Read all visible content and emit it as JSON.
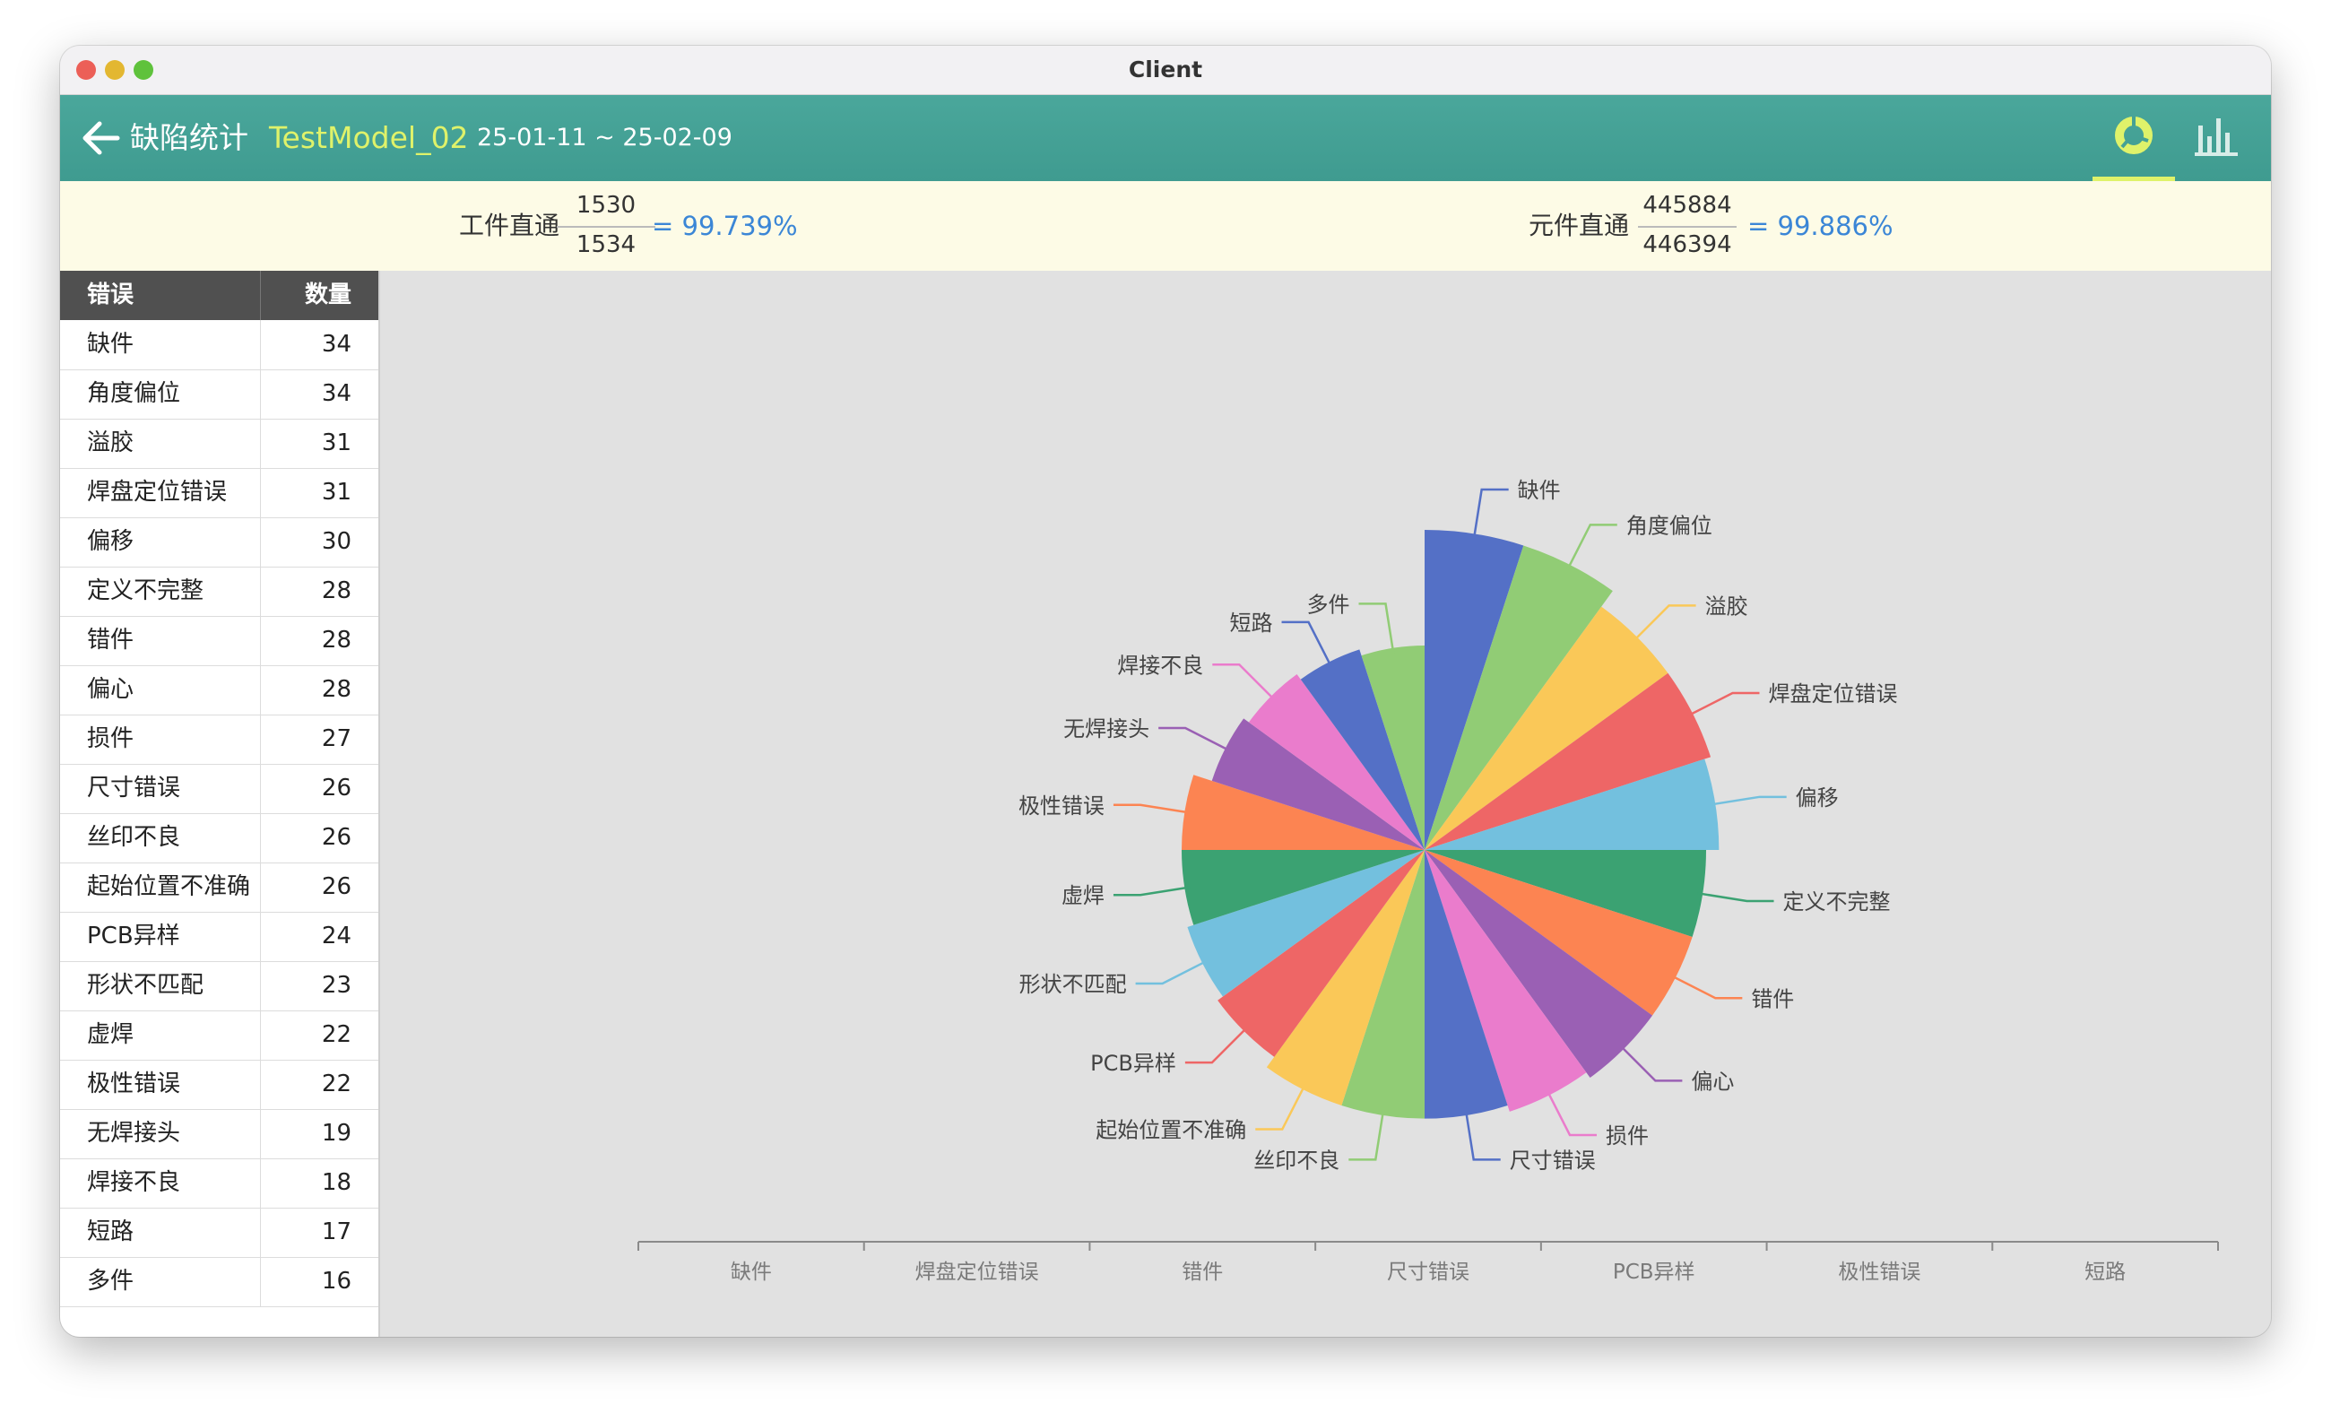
{
  "window": {
    "title": "Client"
  },
  "header": {
    "back_icon": "arrow-left-icon",
    "title": "缺陷统计",
    "model": "TestModel_02",
    "date_range": "25-01-11 ~ 25-02-09",
    "tabs": [
      {
        "icon": "pie-chart-icon",
        "selected": true
      },
      {
        "icon": "bar-chart-icon",
        "selected": false
      }
    ],
    "accent_color": "#dff26a",
    "bar_color": "#45a195"
  },
  "summary": {
    "workpiece": {
      "label": "工件直通",
      "numerator": "1530",
      "denominator": "1534",
      "result": "= 99.739%"
    },
    "component": {
      "label": "元件直通",
      "numerator": "445884",
      "denominator": "446394",
      "result": "= 99.886%"
    },
    "result_color": "#3b86d6"
  },
  "table": {
    "headers": {
      "error": "错误",
      "count": "数量"
    },
    "rows": [
      {
        "name": "缺件",
        "count": "34"
      },
      {
        "name": "角度偏位",
        "count": "34"
      },
      {
        "name": "溢胶",
        "count": "31"
      },
      {
        "name": "焊盘定位错误",
        "count": "31"
      },
      {
        "name": "偏移",
        "count": "30"
      },
      {
        "name": "定义不完整",
        "count": "28"
      },
      {
        "name": "错件",
        "count": "28"
      },
      {
        "name": "偏心",
        "count": "28"
      },
      {
        "name": "损件",
        "count": "27"
      },
      {
        "name": "尺寸错误",
        "count": "26"
      },
      {
        "name": "丝印不良",
        "count": "26"
      },
      {
        "name": "起始位置不准确",
        "count": "26"
      },
      {
        "name": "PCB异样",
        "count": "24"
      },
      {
        "name": "形状不匹配",
        "count": "23"
      },
      {
        "name": "虚焊",
        "count": "22"
      },
      {
        "name": "极性错误",
        "count": "22"
      },
      {
        "name": "无焊接头",
        "count": "19"
      },
      {
        "name": "焊接不良",
        "count": "18"
      },
      {
        "name": "短路",
        "count": "17"
      },
      {
        "name": "多件",
        "count": "16"
      }
    ]
  },
  "chart_data": {
    "type": "pie",
    "variant": "nightingale-rose",
    "categories": [
      "缺件",
      "角度偏位",
      "溢胶",
      "焊盘定位错误",
      "偏移",
      "定义不完整",
      "错件",
      "偏心",
      "损件",
      "尺寸错误",
      "丝印不良",
      "起始位置不准确",
      "PCB异样",
      "形状不匹配",
      "虚焊",
      "极性错误",
      "无焊接头",
      "焊接不良",
      "短路",
      "多件"
    ],
    "values": [
      34,
      34,
      31,
      31,
      30,
      28,
      28,
      28,
      27,
      26,
      26,
      26,
      24,
      23,
      22,
      22,
      19,
      18,
      17,
      16
    ],
    "colors": [
      "#5470c6",
      "#91cc75",
      "#fac858",
      "#ee6666",
      "#73c0de",
      "#3ba272",
      "#fc8452",
      "#9a60b4",
      "#ea7ccc",
      "#5470c6",
      "#91cc75",
      "#fac858",
      "#ee6666",
      "#73c0de",
      "#3ba272",
      "#fc8452",
      "#9a60b4",
      "#ea7ccc",
      "#5470c6",
      "#91cc75"
    ],
    "x_axis_ticks": [
      "缺件",
      "焊盘定位错误",
      "错件",
      "尺寸错误",
      "PCB异样",
      "极性错误",
      "短路"
    ]
  }
}
